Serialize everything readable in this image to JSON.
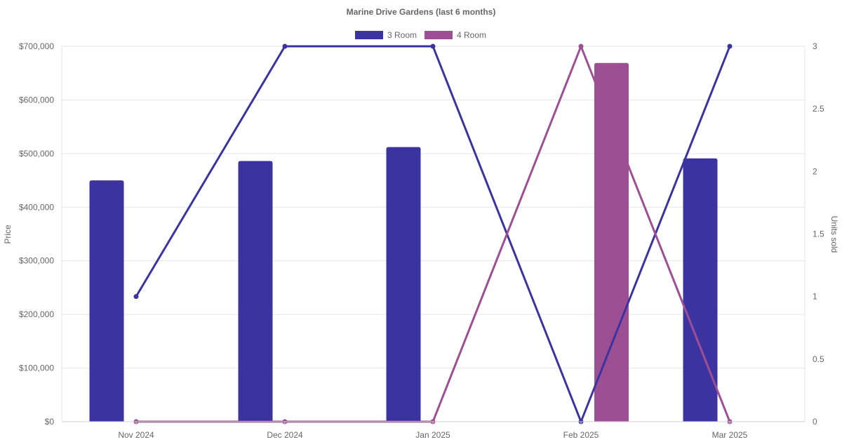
{
  "chart_data": {
    "type": "bar+line",
    "title": "Marine Drive Gardens (last 6 months)",
    "categories": [
      "Nov 2024",
      "Dec 2024",
      "Jan 2025",
      "Feb 2025",
      "Mar 2025"
    ],
    "bar_series": [
      {
        "name": "3 Room",
        "color": "#3b34a0",
        "values": [
          450000,
          486000,
          512000,
          null,
          491000
        ]
      },
      {
        "name": "4 Room",
        "color": "#9d4f94",
        "values": [
          null,
          null,
          null,
          669000,
          null
        ]
      }
    ],
    "line_series": [
      {
        "name": "3 Room",
        "color": "#3b34a0",
        "values": [
          1,
          3,
          3,
          0,
          3
        ]
      },
      {
        "name": "4 Room",
        "color": "#9d4f94",
        "values": [
          0,
          0,
          0,
          3,
          0
        ]
      }
    ],
    "y_left": {
      "label": "Price",
      "ylim": [
        0,
        700000
      ],
      "ticks": [
        "$0",
        "$100,000",
        "$200,000",
        "$300,000",
        "$400,000",
        "$500,000",
        "$600,000",
        "$700,000"
      ]
    },
    "y_right": {
      "label": "Units sold",
      "ylim": [
        0,
        3
      ],
      "ticks": [
        "0",
        "0.5",
        "1",
        "1.5",
        "2",
        "2.5",
        "3"
      ]
    },
    "legend": {
      "position": "top",
      "entries": [
        "3 Room",
        "4 Room"
      ]
    },
    "grid": true
  }
}
